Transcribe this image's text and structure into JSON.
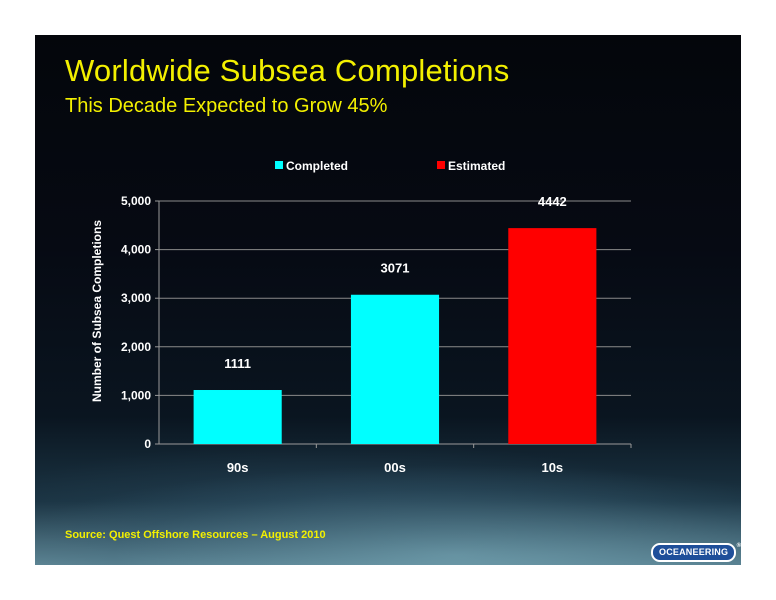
{
  "slide": {
    "title": "Worldwide Subsea Completions",
    "subtitle": "This Decade Expected to Grow 45%",
    "source": "Source:  Quest Offshore Resources – August 2010",
    "logo_text": "OCEANEERING",
    "logo_tm": "®"
  },
  "chart_data": {
    "type": "bar",
    "categories": [
      "90s",
      "00s",
      "10s"
    ],
    "values": [
      1111,
      3071,
      4442
    ],
    "data_labels": [
      "1111",
      "3071",
      "4442"
    ],
    "bar_status": [
      "Completed",
      "Completed",
      "Estimated"
    ],
    "legend": [
      {
        "name": "Completed",
        "color": "#00ffff"
      },
      {
        "name": "Estimated",
        "color": "#ff0000"
      }
    ],
    "ylabel": "Number of Subsea Completions",
    "xlabel": "",
    "ylim": [
      0,
      5000
    ],
    "yticks": [
      0,
      1000,
      2000,
      3000,
      4000,
      5000
    ],
    "ytick_labels": [
      "0",
      "1,000",
      "2,000",
      "3,000",
      "4,000",
      "5,000"
    ],
    "grid": true,
    "legend_position": "top"
  }
}
